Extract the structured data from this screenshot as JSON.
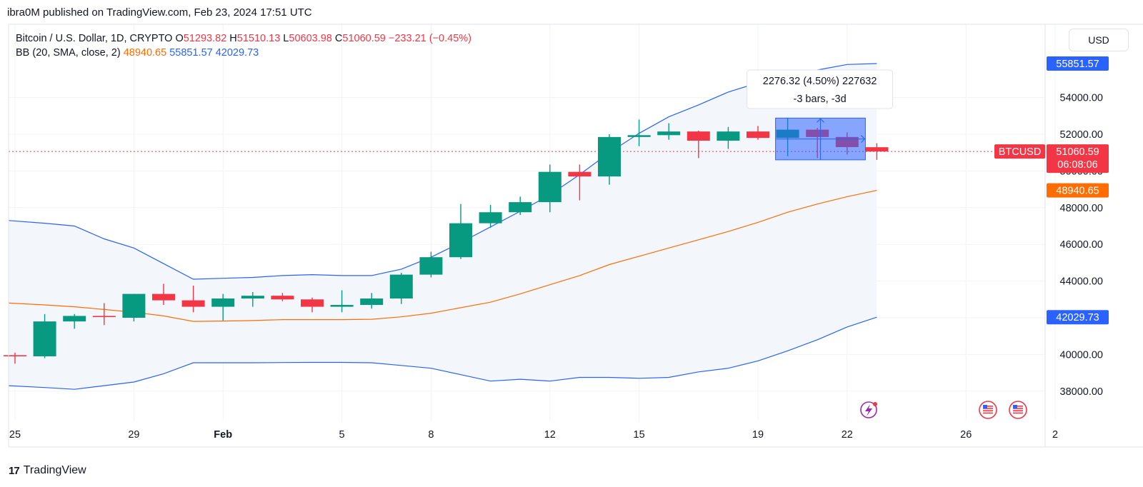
{
  "header": {
    "published_by": "ibra0M published on TradingView.com, Feb 23, 2024 17:51 UTC"
  },
  "currency": "USD",
  "legend": {
    "symbol": "Bitcoin / U.S. Dollar, 1D, CRYPTO",
    "o_label": "O",
    "o_value": "51293.82",
    "h_label": "H",
    "h_value": "51510.13",
    "l_label": "L",
    "l_value": "50603.98",
    "c_label": "C",
    "c_value": "51060.59",
    "change": "−233.21 (−0.45%)",
    "bb_label": "BB (20, SMA, close, 2)",
    "bb_basis": "48940.65",
    "bb_upper": "55851.57",
    "bb_lower": "42029.73"
  },
  "measure": {
    "line1": "2276.32 (4.50%) 227632",
    "line2": "-3 bars, -3d"
  },
  "price_labels": {
    "upper": "55851.57",
    "symbol_tag": "BTCUSD",
    "last": "51060.59",
    "countdown": "06:08:06",
    "basis": "48940.65",
    "lower": "42029.73"
  },
  "footer": {
    "brand": "TradingView",
    "logo": "17"
  },
  "colors": {
    "up": "#089981",
    "down": "#f23645",
    "bb_band": "#2962ff",
    "bb_basis": "#ff6d00",
    "band_fill": "#f3f7fc",
    "grid": "#f0f3fa",
    "last_line": "#f23645"
  },
  "chart_data": {
    "type": "candlestick",
    "title": "Bitcoin / U.S. Dollar, 1D, CRYPTO",
    "ylim": [
      37000,
      57500
    ],
    "y_ticks": [
      "38000.00",
      "40000.00",
      "42000.00",
      "44000.00",
      "46000.00",
      "48000.00",
      "50000.00",
      "52000.00",
      "54000.00"
    ],
    "x_ticks": [
      {
        "day": -4,
        "label": "25"
      },
      {
        "day": 0,
        "label": "29"
      },
      {
        "day": 3,
        "label": "Feb"
      },
      {
        "day": 7,
        "label": "5"
      },
      {
        "day": 10,
        "label": "8"
      },
      {
        "day": 14,
        "label": "12"
      },
      {
        "day": 17,
        "label": "15"
      },
      {
        "day": 21,
        "label": "19"
      },
      {
        "day": 24,
        "label": "22"
      },
      {
        "day": 28,
        "label": "26"
      },
      {
        "day": 31,
        "label": "2"
      }
    ],
    "last_price": 51060.59,
    "candles": [
      {
        "d": "Jan 25",
        "o": 39960,
        "h": 40100,
        "l": 39500,
        "c": 39950
      },
      {
        "d": "Jan 26",
        "o": 39900,
        "h": 42200,
        "l": 39800,
        "c": 41800
      },
      {
        "d": "Jan 27",
        "o": 41800,
        "h": 42200,
        "l": 41400,
        "c": 42100
      },
      {
        "d": "Jan 28",
        "o": 42100,
        "h": 42800,
        "l": 41600,
        "c": 42050
      },
      {
        "d": "Jan 29",
        "o": 42000,
        "h": 43300,
        "l": 41800,
        "c": 43300
      },
      {
        "d": "Jan 30",
        "o": 43300,
        "h": 43850,
        "l": 42700,
        "c": 42950
      },
      {
        "d": "Jan 31",
        "o": 42950,
        "h": 43750,
        "l": 42300,
        "c": 42600
      },
      {
        "d": "Feb 01",
        "o": 42600,
        "h": 43300,
        "l": 41850,
        "c": 43050
      },
      {
        "d": "Feb 02",
        "o": 43050,
        "h": 43400,
        "l": 42600,
        "c": 43200
      },
      {
        "d": "Feb 03",
        "o": 43200,
        "h": 43350,
        "l": 42900,
        "c": 43000
      },
      {
        "d": "Feb 04",
        "o": 43000,
        "h": 43100,
        "l": 42300,
        "c": 42600
      },
      {
        "d": "Feb 05",
        "o": 42600,
        "h": 43500,
        "l": 42300,
        "c": 42700
      },
      {
        "d": "Feb 06",
        "o": 42700,
        "h": 43350,
        "l": 42500,
        "c": 43050
      },
      {
        "d": "Feb 07",
        "o": 43050,
        "h": 44450,
        "l": 42750,
        "c": 44350
      },
      {
        "d": "Feb 08",
        "o": 44350,
        "h": 45600,
        "l": 44200,
        "c": 45300
      },
      {
        "d": "Feb 09",
        "o": 45300,
        "h": 48200,
        "l": 45200,
        "c": 47150
      },
      {
        "d": "Feb 10",
        "o": 47150,
        "h": 48150,
        "l": 46900,
        "c": 47750
      },
      {
        "d": "Feb 11",
        "o": 47750,
        "h": 48600,
        "l": 47600,
        "c": 48300
      },
      {
        "d": "Feb 12",
        "o": 48300,
        "h": 50350,
        "l": 47750,
        "c": 49950
      },
      {
        "d": "Feb 13",
        "o": 49950,
        "h": 50350,
        "l": 48400,
        "c": 49700
      },
      {
        "d": "Feb 14",
        "o": 49700,
        "h": 52000,
        "l": 49250,
        "c": 51850
      },
      {
        "d": "Feb 15",
        "o": 51850,
        "h": 52800,
        "l": 51350,
        "c": 51950
      },
      {
        "d": "Feb 16",
        "o": 51950,
        "h": 52600,
        "l": 51700,
        "c": 52150
      },
      {
        "d": "Feb 17",
        "o": 52150,
        "h": 52200,
        "l": 50700,
        "c": 51650
      },
      {
        "d": "Feb 18",
        "o": 51650,
        "h": 52400,
        "l": 51200,
        "c": 52150
      },
      {
        "d": "Feb 19",
        "o": 52150,
        "h": 52450,
        "l": 51700,
        "c": 51800
      },
      {
        "d": "Feb 20",
        "o": 51800,
        "h": 52900,
        "l": 50800,
        "c": 52250
      },
      {
        "d": "Feb 21",
        "o": 52250,
        "h": 52350,
        "l": 50700,
        "c": 51850
      },
      {
        "d": "Feb 22",
        "o": 51850,
        "h": 52100,
        "l": 50900,
        "c": 51300
      },
      {
        "d": "Feb 23",
        "o": 51293.82,
        "h": 51510.13,
        "l": 50603.98,
        "c": 51060.59
      }
    ],
    "bollinger": {
      "name": "BB (20, SMA, close, 2)",
      "upper": [
        47300,
        47150,
        47000,
        46300,
        45800,
        44950,
        44100,
        44150,
        44200,
        44300,
        44350,
        44300,
        44300,
        44650,
        45300,
        46100,
        46950,
        47800,
        48700,
        49800,
        51000,
        52050,
        52950,
        53600,
        54300,
        54800,
        55200,
        55500,
        55800,
        55851.57
      ],
      "basis": [
        42800,
        42700,
        42600,
        42450,
        42300,
        42100,
        41800,
        41820,
        41850,
        41900,
        41900,
        41900,
        41920,
        42050,
        42250,
        42550,
        42850,
        43300,
        43800,
        44300,
        44900,
        45350,
        45800,
        46250,
        46700,
        47200,
        47750,
        48200,
        48600,
        48940.65
      ],
      "lower": [
        38300,
        38200,
        38100,
        38300,
        38500,
        38950,
        39550,
        39550,
        39550,
        39560,
        39570,
        39570,
        39550,
        39400,
        39250,
        38900,
        38550,
        38650,
        38550,
        38750,
        38750,
        38700,
        38750,
        39050,
        39250,
        39650,
        40200,
        40800,
        41500,
        42029.73
      ]
    },
    "measure_range": {
      "from": "Feb 20",
      "to": "Feb 23",
      "low": 50603.98,
      "high": 52880.3
    }
  }
}
